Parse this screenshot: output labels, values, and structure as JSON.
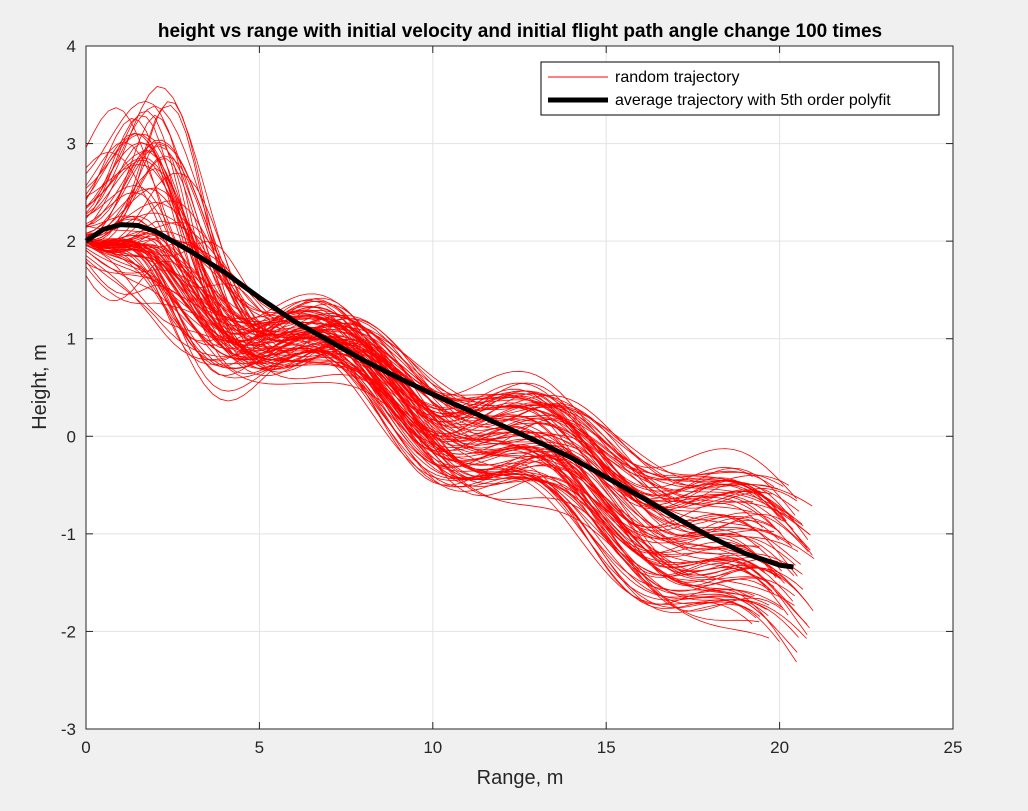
{
  "chart_data": {
    "type": "line",
    "title": "height vs range with initial velocity and initial flight path angle change 100 times",
    "xlabel": "Range, m",
    "ylabel": "Height, m",
    "xlim": [
      0,
      25
    ],
    "ylim": [
      -3,
      4
    ],
    "xticks": [
      0,
      5,
      10,
      15,
      20,
      25
    ],
    "yticks": [
      -3,
      -2,
      -1,
      0,
      1,
      2,
      3,
      4
    ],
    "xtick_labels": [
      "0",
      "5",
      "10",
      "15",
      "20",
      "25"
    ],
    "ytick_labels": [
      "-3",
      "-2",
      "-1",
      "0",
      "1",
      "2",
      "3",
      "4"
    ],
    "grid": true,
    "legend_position": "top-right",
    "colors": {
      "random": "#ff0000",
      "average": "#000000"
    },
    "series": [
      {
        "name": "random trajectory",
        "kind": "bundle",
        "count": 100,
        "start": [
          0,
          2.0
        ],
        "end_range_x": [
          19.2,
          21.0
        ],
        "end_range_y": [
          -2.35,
          -0.6
        ],
        "peak_range_y": [
          0.65,
          3.87
        ],
        "envelope_upper": [
          [
            0,
            2.0
          ],
          [
            1,
            3.87
          ],
          [
            2,
            3.66
          ],
          [
            3,
            3.25
          ],
          [
            4,
            1.9
          ],
          [
            5,
            2.05
          ],
          [
            6.5,
            1.97
          ],
          [
            8,
            1.75
          ],
          [
            10,
            0.9
          ],
          [
            12,
            0.75
          ],
          [
            15,
            0.05
          ],
          [
            19.2,
            -0.6
          ],
          [
            20.5,
            -1.0
          ]
        ],
        "envelope_lower": [
          [
            0,
            2.0
          ],
          [
            2,
            0.85
          ],
          [
            3,
            0.68
          ],
          [
            5,
            0.7
          ],
          [
            7,
            0.25
          ],
          [
            10,
            -0.35
          ],
          [
            13,
            -0.85
          ],
          [
            16,
            -1.5
          ],
          [
            20.6,
            -2.35
          ]
        ]
      },
      {
        "name": "average trajectory with 5th order polyfit",
        "kind": "line",
        "x": [
          0,
          0.5,
          1,
          1.5,
          2,
          3,
          4,
          5,
          6,
          7,
          8,
          9,
          10,
          11,
          12,
          13,
          14,
          15,
          16,
          17,
          18,
          19,
          20,
          20.4
        ],
        "y": [
          2.0,
          2.12,
          2.17,
          2.16,
          2.1,
          1.9,
          1.68,
          1.42,
          1.18,
          0.98,
          0.78,
          0.6,
          0.43,
          0.27,
          0.11,
          -0.05,
          -0.22,
          -0.42,
          -0.62,
          -0.83,
          -1.03,
          -1.2,
          -1.32,
          -1.34
        ]
      }
    ]
  }
}
